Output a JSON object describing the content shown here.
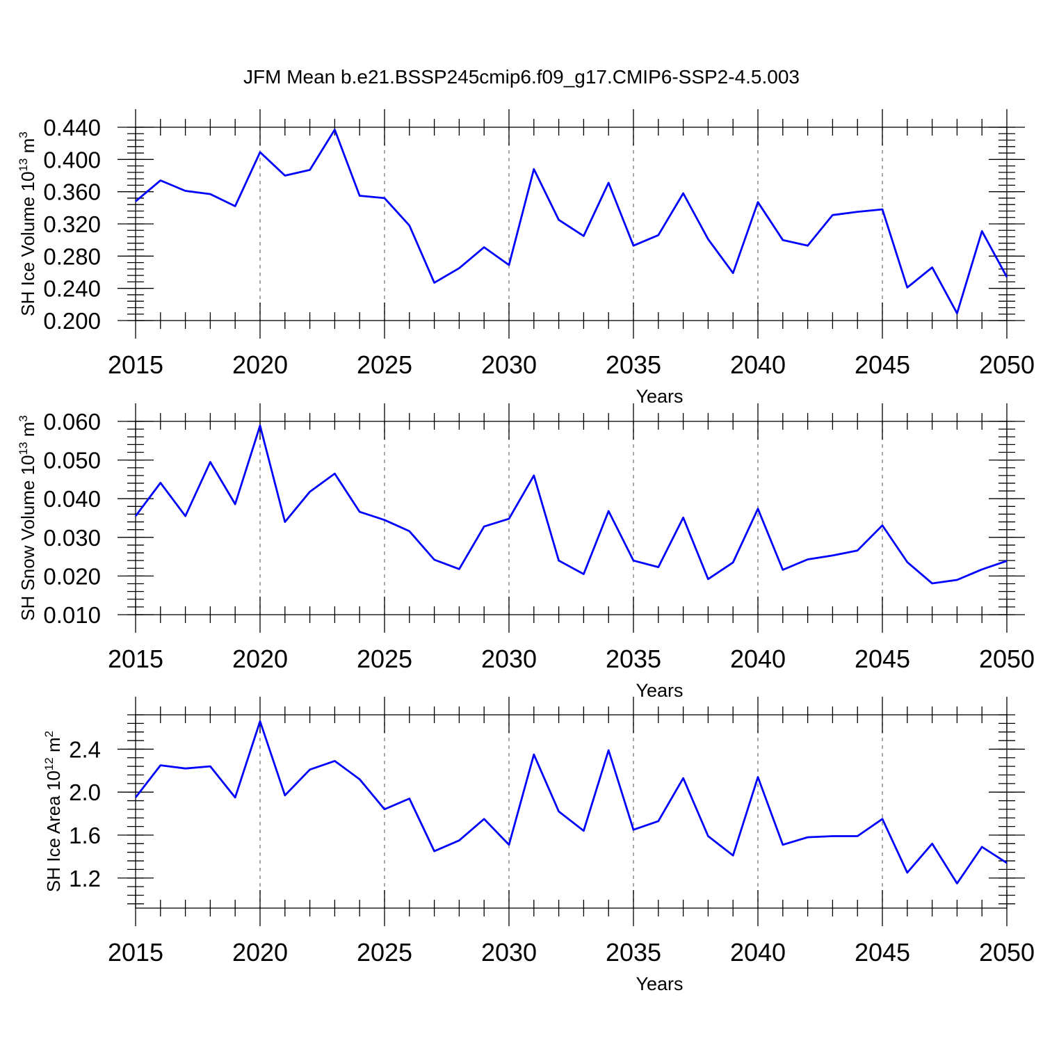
{
  "title": "JFM Mean b.e21.BSSP245cmip6.f09_g17.CMIP6-SSP2-4.5.003",
  "colors": {
    "line": "#0000ff",
    "grid": "#8a8a8a"
  },
  "chart_data": [
    {
      "type": "line",
      "ylabel": "SH Ice Volume",
      "ylabel_unit": "10^13 m^3",
      "ylabel_base": "10",
      "ylabel_exp": "13",
      "ylabel_unit_base": "m",
      "ylabel_unit_exp": "3",
      "xlabel": "Years",
      "xlim": [
        2015,
        2050
      ],
      "ylim": [
        0.2,
        0.44
      ],
      "ytick_values": [
        0.2,
        0.24,
        0.28,
        0.32,
        0.36,
        0.4,
        0.44
      ],
      "yticks": [
        "0.200",
        "0.240",
        "0.280",
        "0.320",
        "0.360",
        "0.400",
        "0.440"
      ],
      "yminor_step": 0.008,
      "ygrid_limit": 0.44,
      "xticks": [
        "2015",
        "2020",
        "2025",
        "2030",
        "2035",
        "2040",
        "2045",
        "2050"
      ],
      "x": [
        2015,
        2016,
        2017,
        2018,
        2019,
        2020,
        2021,
        2022,
        2023,
        2024,
        2025,
        2026,
        2027,
        2028,
        2029,
        2030,
        2031,
        2032,
        2033,
        2034,
        2035,
        2036,
        2037,
        2038,
        2039,
        2040,
        2041,
        2042,
        2043,
        2044,
        2045,
        2046,
        2047,
        2048,
        2049,
        2050
      ],
      "values": [
        0.348,
        0.374,
        0.361,
        0.357,
        0.342,
        0.409,
        0.38,
        0.387,
        0.437,
        0.355,
        0.352,
        0.318,
        0.247,
        0.265,
        0.291,
        0.269,
        0.388,
        0.325,
        0.305,
        0.371,
        0.293,
        0.306,
        0.358,
        0.301,
        0.259,
        0.347,
        0.3,
        0.293,
        0.331,
        0.335,
        0.338,
        0.241,
        0.266,
        0.209,
        0.311,
        0.254
      ]
    },
    {
      "type": "line",
      "ylabel": "SH Snow Volume",
      "ylabel_unit": "10^13 m^3",
      "ylabel_base": "10",
      "ylabel_exp": "13",
      "ylabel_unit_base": "m",
      "ylabel_unit_exp": "3",
      "xlabel": "Years",
      "xlim": [
        2015,
        2050
      ],
      "ylim": [
        0.01,
        0.06
      ],
      "ytick_values": [
        0.01,
        0.02,
        0.03,
        0.04,
        0.05,
        0.06
      ],
      "yticks": [
        "0.010",
        "0.020",
        "0.030",
        "0.040",
        "0.050",
        "0.060"
      ],
      "yminor_step": 0.002,
      "ygrid_limit": 0.06,
      "xticks": [
        "2015",
        "2020",
        "2025",
        "2030",
        "2035",
        "2040",
        "2045",
        "2050"
      ],
      "x": [
        2015,
        2016,
        2017,
        2018,
        2019,
        2020,
        2021,
        2022,
        2023,
        2024,
        2025,
        2026,
        2027,
        2028,
        2029,
        2030,
        2031,
        2032,
        2033,
        2034,
        2035,
        2036,
        2037,
        2038,
        2039,
        2040,
        2041,
        2042,
        2043,
        2044,
        2045,
        2046,
        2047,
        2048,
        2049,
        2050
      ],
      "values": [
        0.0355,
        0.0441,
        0.0355,
        0.0495,
        0.0386,
        0.0589,
        0.034,
        0.0418,
        0.0465,
        0.0366,
        0.0345,
        0.0316,
        0.0242,
        0.0218,
        0.0328,
        0.0348,
        0.046,
        0.024,
        0.0205,
        0.0368,
        0.024,
        0.0223,
        0.0351,
        0.0192,
        0.0235,
        0.0374,
        0.0216,
        0.0243,
        0.0253,
        0.0266,
        0.0331,
        0.0236,
        0.0181,
        0.019,
        0.0217,
        0.0239
      ]
    },
    {
      "type": "line",
      "ylabel": "SH Ice Area",
      "ylabel_unit": "10^12 m^2",
      "ylabel_base": "10",
      "ylabel_exp": "12",
      "ylabel_unit_base": "m",
      "ylabel_unit_exp": "2",
      "xlabel": "Years",
      "xlim": [
        2015,
        2050
      ],
      "ylim": [
        0.92,
        2.72
      ],
      "ytick_values": [
        1.2,
        1.6,
        2.0,
        2.4
      ],
      "yticks": [
        "1.2",
        "1.6",
        "2.0",
        "2.4"
      ],
      "yminor_step": 0.08,
      "ygrid_limit": 2.72,
      "xticks": [
        "2015",
        "2020",
        "2025",
        "2030",
        "2035",
        "2040",
        "2045",
        "2050"
      ],
      "x": [
        2015,
        2016,
        2017,
        2018,
        2019,
        2020,
        2021,
        2022,
        2023,
        2024,
        2025,
        2026,
        2027,
        2028,
        2029,
        2030,
        2031,
        2032,
        2033,
        2034,
        2035,
        2036,
        2037,
        2038,
        2039,
        2040,
        2041,
        2042,
        2043,
        2044,
        2045,
        2046,
        2047,
        2048,
        2049,
        2050
      ],
      "values": [
        1.95,
        2.25,
        2.22,
        2.24,
        1.95,
        2.66,
        1.97,
        2.21,
        2.29,
        2.12,
        1.84,
        1.94,
        1.45,
        1.55,
        1.75,
        1.51,
        2.35,
        1.82,
        1.64,
        2.39,
        1.65,
        1.73,
        2.13,
        1.59,
        1.41,
        2.14,
        1.51,
        1.58,
        1.59,
        1.59,
        1.75,
        1.25,
        1.52,
        1.15,
        1.49,
        1.34
      ]
    }
  ]
}
